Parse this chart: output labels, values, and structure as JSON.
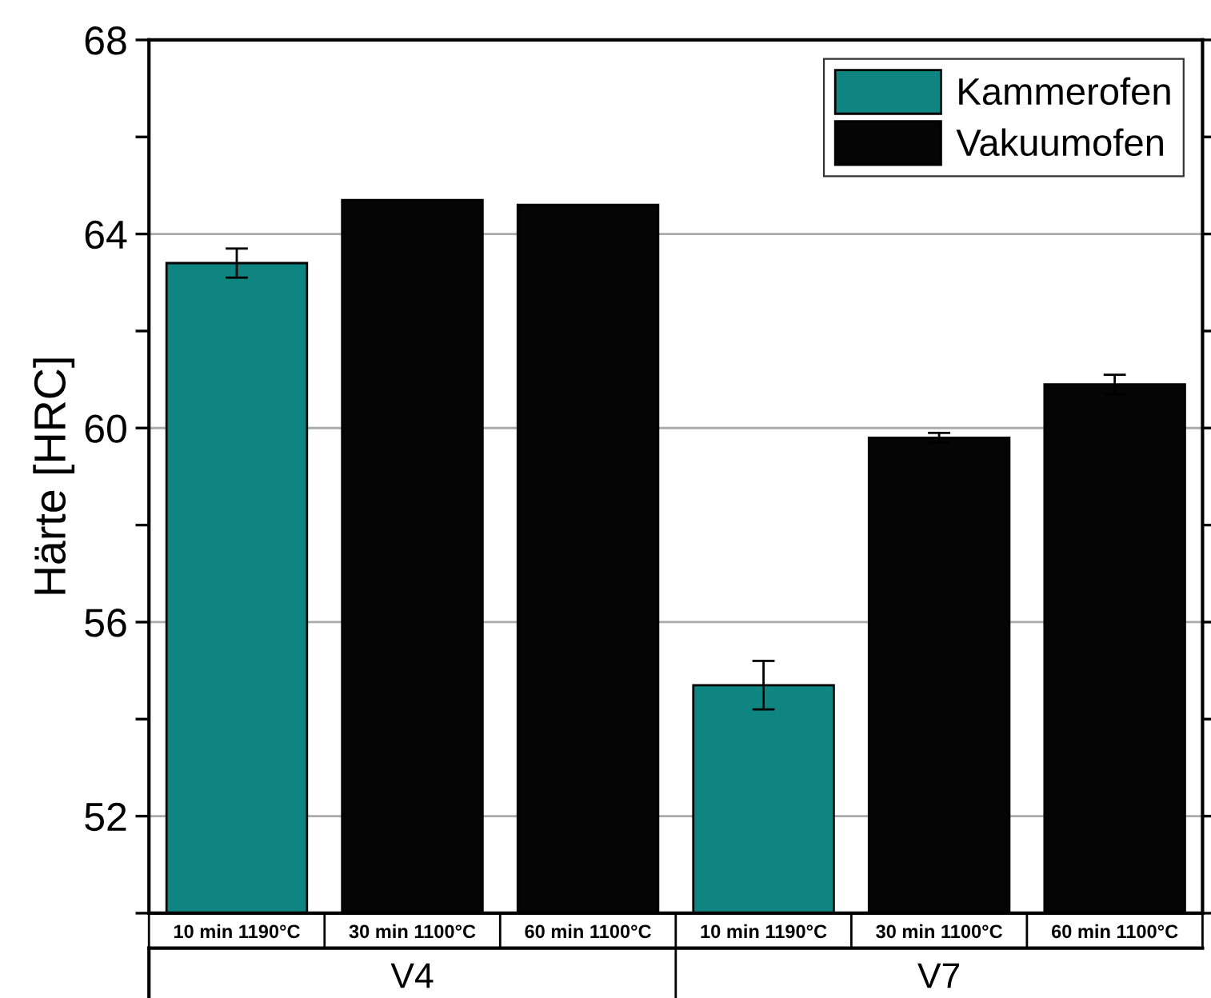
{
  "chart_data": {
    "type": "bar",
    "ylabel": "Härte [HRC]",
    "categories": [
      "10 min 1190°C",
      "30 min 1100°C",
      "60 min 1100°C",
      "10 min 1190°C",
      "30 min 1100°C",
      "60 min 1100°C"
    ],
    "series": [
      {
        "name": "Kammerofen",
        "color": "#0e8580",
        "values": [
          63.4,
          null,
          null,
          54.7,
          null,
          null
        ],
        "errors": [
          0.3,
          null,
          null,
          0.5,
          null,
          null
        ]
      },
      {
        "name": "Vakuumofen",
        "color": "#050505",
        "values": [
          null,
          64.7,
          64.6,
          null,
          59.8,
          60.9
        ],
        "errors": [
          null,
          null,
          null,
          null,
          0.1,
          0.2
        ]
      }
    ],
    "ylim": [
      50,
      68
    ],
    "yticks": [
      {
        "value": 50,
        "label": null
      },
      52,
      {
        "value": 54,
        "label": null
      },
      56,
      {
        "value": 58,
        "label": null
      },
      60,
      {
        "value": 62,
        "label": null
      },
      64,
      {
        "value": 66,
        "label": null
      },
      68
    ],
    "grid": "y",
    "legend": "top right",
    "annotations": [
      "V4",
      "V7"
    ]
  }
}
